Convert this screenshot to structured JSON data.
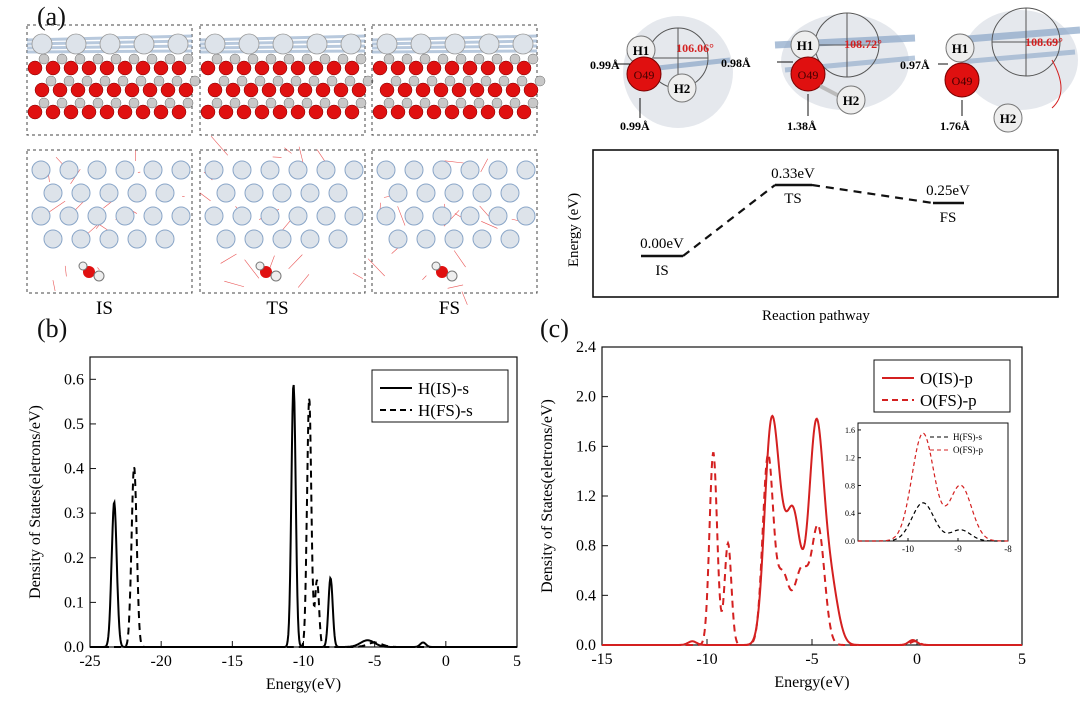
{
  "panel_labels": {
    "a": "(a)",
    "b": "(b)",
    "c": "(c)"
  },
  "structures": {
    "labels": [
      "IS",
      "TS",
      "FS"
    ],
    "colors": {
      "oxygen": "#e01010",
      "cation": "#c8c8c8",
      "bond": "#8aa6c8",
      "frame": "#444444"
    }
  },
  "geometry": {
    "IS": {
      "angle": "106.06°",
      "d_H1": "0.99Å",
      "d_H2": "0.99Å"
    },
    "TS": {
      "angle": "108.72°",
      "d_H1": "0.98Å",
      "d_H2": "1.38Å"
    },
    "FS": {
      "angle": "108.69°",
      "d_H1": "0.97Å",
      "d_H2": "1.76Å"
    },
    "atoms": {
      "h1": "H1",
      "h2": "H2",
      "o": "O49"
    }
  },
  "energy_profile": {
    "ylabel": "Energy (eV)",
    "xlabel": "Reaction pathway",
    "states": [
      {
        "name": "IS",
        "energy": "0.00eV",
        "value": 0.0
      },
      {
        "name": "TS",
        "energy": "0.33eV",
        "value": 0.33
      },
      {
        "name": "FS",
        "energy": "0.25eV",
        "value": 0.25
      }
    ]
  },
  "chart_data": [
    {
      "type": "line",
      "panel": "(b)",
      "xlabel": "Energy(eV)",
      "ylabel": "Density of States(eletrons/eV)",
      "xlim": [
        -25,
        5
      ],
      "ylim": [
        0,
        0.65
      ],
      "xticks": [
        -25,
        -20,
        -15,
        -10,
        -5,
        0,
        5
      ],
      "yticks": [
        0.0,
        0.1,
        0.2,
        0.3,
        0.4,
        0.5,
        0.6
      ],
      "legend_position": "top-right",
      "series": [
        {
          "name": "H(IS)-s",
          "color": "#000000",
          "dash": "solid",
          "peaks": [
            [
              -23.3,
              0.325,
              0.18
            ],
            [
              -10.7,
              0.59,
              0.15
            ],
            [
              -8.1,
              0.155,
              0.15
            ],
            [
              -5.5,
              0.015,
              0.5
            ],
            [
              -1.6,
              0.01,
              0.2
            ]
          ]
        },
        {
          "name": "H(FS)-s",
          "color": "#000000",
          "dash": "dashed",
          "peaks": [
            [
              -21.9,
              0.405,
              0.18
            ],
            [
              -9.6,
              0.56,
              0.15
            ],
            [
              -9.05,
              0.15,
              0.14
            ],
            [
              -5.0,
              0.01,
              0.5
            ]
          ]
        }
      ]
    },
    {
      "type": "line",
      "panel": "(c)",
      "xlabel": "Energy(eV)",
      "ylabel": "Density of States(eletrons/eV)",
      "xlim": [
        -15,
        5
      ],
      "ylim": [
        0,
        2.4
      ],
      "xticks": [
        -15,
        -10,
        -5,
        0,
        5
      ],
      "yticks": [
        0.0,
        0.4,
        0.8,
        1.2,
        1.6,
        2.0,
        2.4
      ],
      "legend_position": "top-right",
      "series": [
        {
          "name": "O(IS)-p",
          "color": "#d42020",
          "dash": "solid",
          "peaks": [
            [
              -10.7,
              0.03,
              0.2
            ],
            [
              -7.0,
              1.45,
              0.3
            ],
            [
              -6.6,
              0.75,
              0.3
            ],
            [
              -5.9,
              1.05,
              0.35
            ],
            [
              -4.8,
              1.75,
              0.35
            ],
            [
              -4.1,
              0.45,
              0.35
            ],
            [
              -0.2,
              0.04,
              0.2
            ]
          ]
        },
        {
          "name": "O(FS)-p",
          "color": "#d42020",
          "dash": "dashed",
          "peaks": [
            [
              -9.7,
              1.55,
              0.18
            ],
            [
              -9.0,
              0.82,
              0.16
            ],
            [
              -7.1,
              1.5,
              0.25
            ],
            [
              -6.4,
              0.55,
              0.3
            ],
            [
              -5.5,
              0.6,
              0.35
            ],
            [
              -4.7,
              0.92,
              0.3
            ],
            [
              -0.1,
              0.03,
              0.2
            ]
          ]
        }
      ],
      "inset": {
        "xlim": [
          -11,
          -8
        ],
        "ylim": [
          0,
          1.7
        ],
        "xticks": [
          -10,
          -9,
          -8
        ],
        "yticks": [
          0.0,
          0.4,
          0.8,
          1.2,
          1.6
        ],
        "series": [
          {
            "name": "H(FS)-s",
            "color": "#000000",
            "dash": "dashed",
            "peaks": [
              [
                -9.7,
                0.55,
                0.22
              ],
              [
                -8.95,
                0.16,
                0.2
              ]
            ]
          },
          {
            "name": "O(FS)-p",
            "color": "#d42020",
            "dash": "dashed",
            "peaks": [
              [
                -9.7,
                1.55,
                0.22
              ],
              [
                -8.95,
                0.8,
                0.22
              ]
            ]
          }
        ]
      }
    }
  ]
}
